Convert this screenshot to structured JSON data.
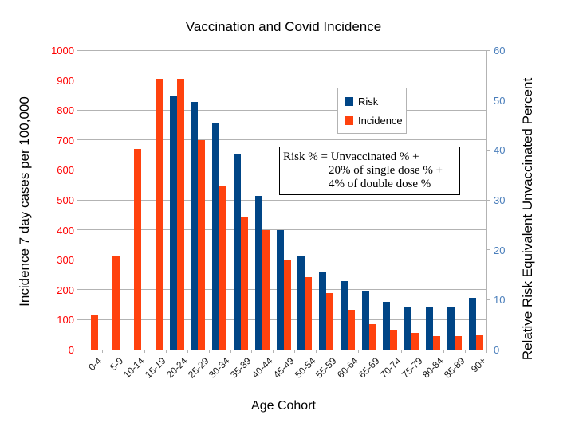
{
  "title": "Vaccination and Covid Incidence",
  "left_axis": {
    "title": "Incidence 7 day cases per 100,000",
    "min": 0,
    "max": 1000,
    "step": 100,
    "label_color": "#ff0000"
  },
  "right_axis": {
    "title": "Relative Risk Equivalent Unvaccinated Percent",
    "min": 0,
    "max": 60,
    "step": 10,
    "label_color": "#4a7ebb"
  },
  "x_axis": {
    "title": "Age Cohort"
  },
  "legend": {
    "items": [
      {
        "label": "Risk",
        "color": "#004586"
      },
      {
        "label": "Incidence",
        "color": "#ff420e"
      }
    ]
  },
  "annotation": {
    "lines": [
      "Risk % = Unvaccinated % +",
      "20% of single dose % +",
      "4% of double dose %"
    ]
  },
  "chart_data": {
    "type": "bar",
    "title": "Vaccination and Covid Incidence",
    "xlabel": "Age Cohort",
    "ylabel_left": "Incidence 7 day cases per 100,000",
    "ylabel_right": "Relative Risk Equivalent Unvaccinated Percent",
    "ylim_left": [
      0,
      1000
    ],
    "ylim_right": [
      0,
      60
    ],
    "grid": true,
    "legend_position": "upper-center-inside",
    "categories": [
      "0-4",
      "5-9",
      "10-14",
      "15-19",
      "20-24",
      "25-29",
      "30-34",
      "35-39",
      "40-44",
      "45-49",
      "50-54",
      "55-59",
      "60-64",
      "65-69",
      "70-74",
      "75-79",
      "80-84",
      "85-89",
      "90+"
    ],
    "series": [
      {
        "name": "Risk",
        "axis": "right",
        "color": "#004586",
        "values": [
          0,
          0,
          0,
          0,
          50.7,
          49.6,
          45.4,
          39.2,
          30.8,
          24,
          18.6,
          15.7,
          13.8,
          11.8,
          9.6,
          8.5,
          8.5,
          8.6,
          10.3
        ]
      },
      {
        "name": "Incidence",
        "axis": "left",
        "color": "#ff420e",
        "values": [
          118,
          315,
          670,
          903,
          905,
          700,
          548,
          443,
          400,
          300,
          242,
          188,
          134,
          85,
          63,
          55,
          46,
          45,
          47
        ]
      }
    ]
  }
}
